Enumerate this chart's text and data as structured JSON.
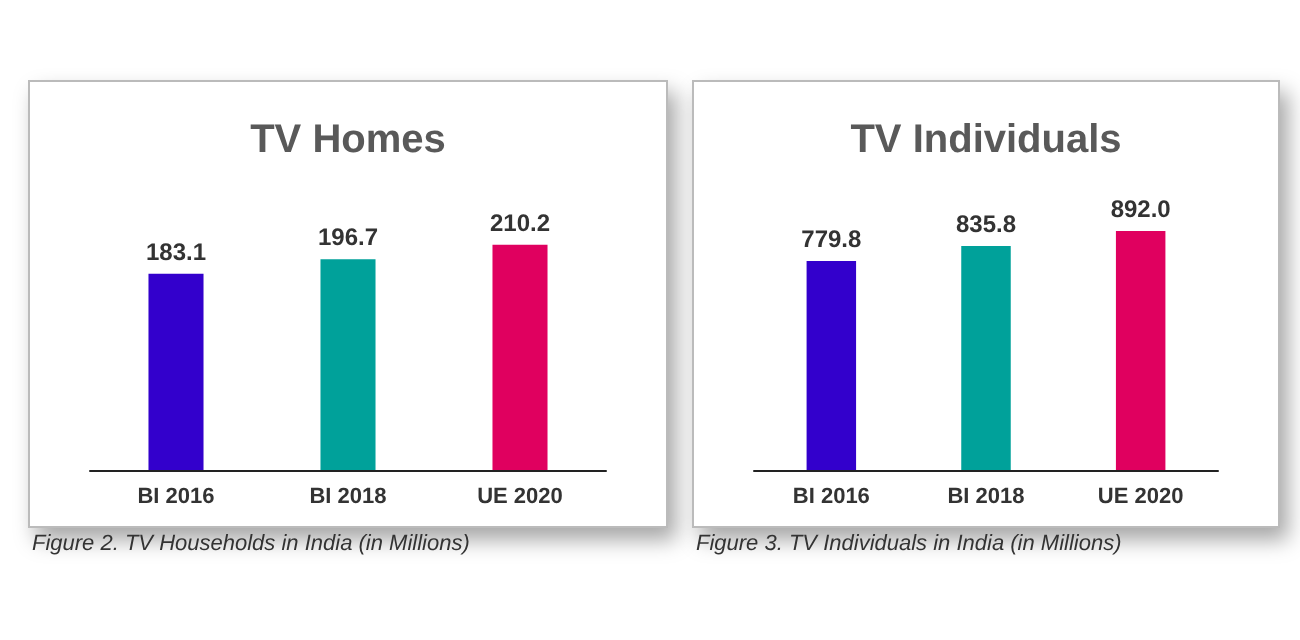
{
  "chart_data": [
    {
      "type": "bar",
      "title": "TV Homes",
      "categories": [
        "BI 2016",
        "BI 2018",
        "UE 2020"
      ],
      "values": [
        183.1,
        196.7,
        210.2
      ],
      "colors": [
        "#3300cc",
        "#00a19a",
        "#e0005f"
      ],
      "value_labels": [
        "183.1",
        "196.7",
        "210.2"
      ],
      "annotations": [
        "Figure 2. TV Households in India (in Millions)"
      ]
    },
    {
      "type": "bar",
      "title": "TV Individuals",
      "categories": [
        "BI 2016",
        "BI 2018",
        "UE 2020"
      ],
      "values": [
        779.8,
        835.8,
        892.0
      ],
      "colors": [
        "#3300cc",
        "#00a19a",
        "#e0005f"
      ],
      "value_labels": [
        "779.8",
        "835.8",
        "892.0"
      ],
      "annotations": [
        "Figure 3. TV Individuals in India (in Millions)"
      ]
    }
  ]
}
